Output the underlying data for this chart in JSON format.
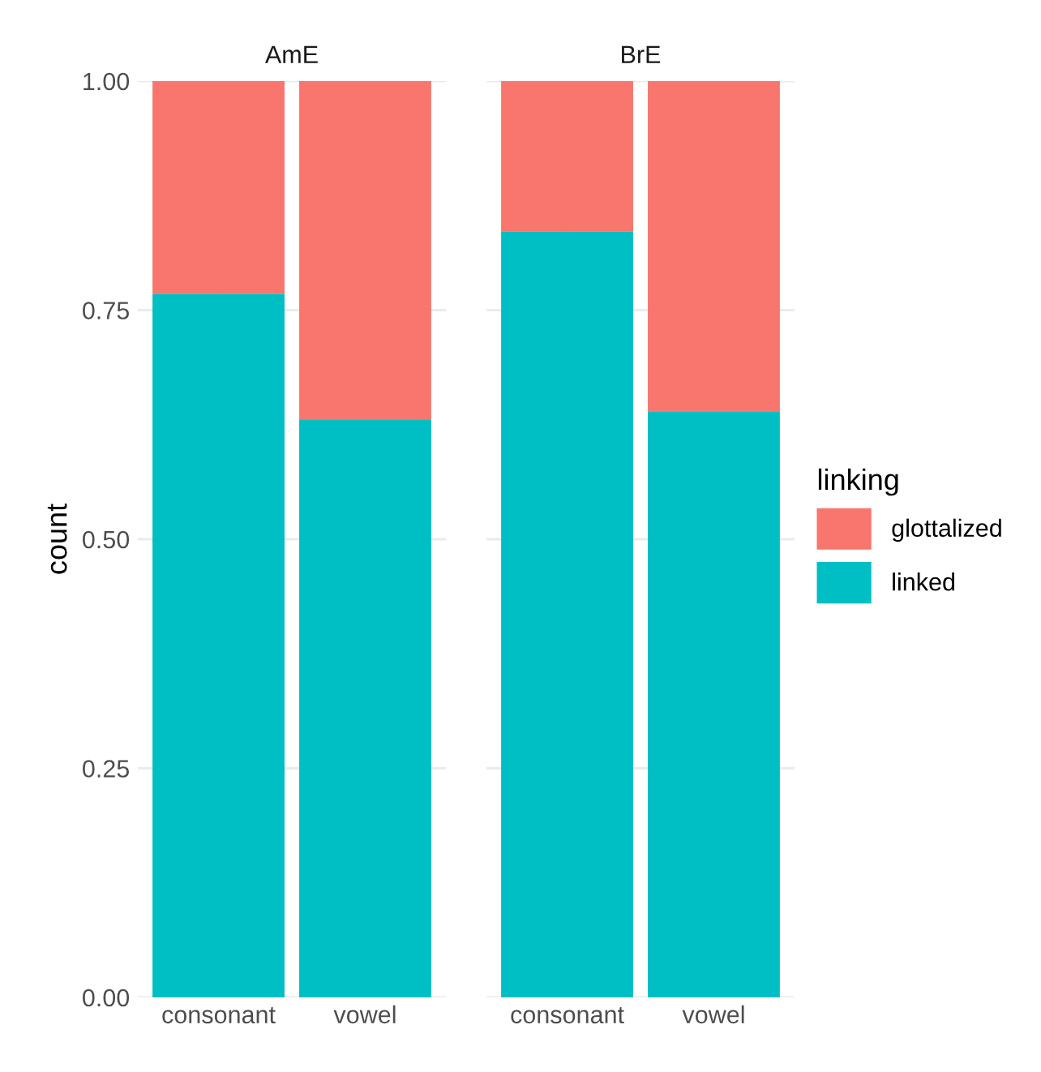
{
  "chart_data": [
    {
      "type": "bar",
      "title": "AmE",
      "ylabel": "count",
      "legend": "right",
      "legend_title": "linking",
      "categories": [
        "consonant",
        "vowel"
      ],
      "stacked": true,
      "ylim": [
        0,
        1.0
      ],
      "yticks": [
        {
          "value": 0,
          "label": "0.00"
        },
        {
          "value": 0.25,
          "label": "0.25"
        },
        {
          "value": 0.5,
          "label": "0.50"
        },
        {
          "value": 0.75,
          "label": "0.75"
        },
        {
          "value": 1.0,
          "label": "1.00"
        }
      ],
      "grid": true,
      "series": [
        {
          "name": "linked",
          "color": "#00bfc4",
          "values": [
            0.768,
            0.63
          ]
        },
        {
          "name": "glottalized",
          "color": "#f8766d",
          "values": [
            0.232,
            0.37
          ]
        }
      ]
    },
    {
      "type": "bar",
      "title": "BrE",
      "categories": [
        "consonant",
        "vowel"
      ],
      "stacked": true,
      "ylim": [
        0,
        1.0
      ],
      "tick_labels": "x",
      "grid": true,
      "series": [
        {
          "color": "#00bfc4",
          "values": [
            0.836,
            0.639
          ]
        },
        {
          "color": "#f8766d",
          "values": [
            0.164,
            0.361
          ]
        }
      ]
    }
  ]
}
